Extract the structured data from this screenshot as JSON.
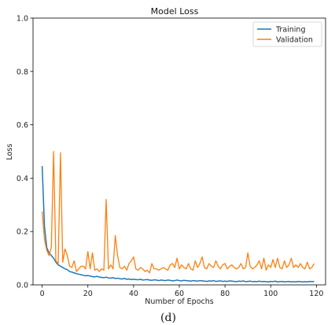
{
  "chart_data": {
    "type": "line",
    "title": "Model Loss",
    "xlabel": "Number of Epochs",
    "ylabel": "Loss",
    "xlim": [
      -4,
      124
    ],
    "ylim": [
      0,
      1.0
    ],
    "xticks": [
      0,
      20,
      40,
      60,
      80,
      100,
      120
    ],
    "yticks": [
      0.0,
      0.2,
      0.4,
      0.6,
      0.8,
      1.0
    ],
    "legend_position": "top-right",
    "grid": false,
    "series": [
      {
        "name": "Training",
        "color": "#1f77b4",
        "x": [
          0,
          1,
          2,
          3,
          4,
          5,
          6,
          7,
          8,
          9,
          10,
          11,
          12,
          13,
          14,
          15,
          16,
          17,
          18,
          19,
          20,
          21,
          22,
          23,
          24,
          25,
          26,
          27,
          28,
          29,
          30,
          31,
          32,
          33,
          34,
          35,
          36,
          37,
          38,
          39,
          40,
          41,
          42,
          43,
          44,
          45,
          46,
          47,
          48,
          49,
          50,
          51,
          52,
          53,
          54,
          55,
          56,
          57,
          58,
          59,
          60,
          61,
          62,
          63,
          64,
          65,
          66,
          67,
          68,
          69,
          70,
          71,
          72,
          73,
          74,
          75,
          76,
          77,
          78,
          79,
          80,
          81,
          82,
          83,
          84,
          85,
          86,
          87,
          88,
          89,
          90,
          91,
          92,
          93,
          94,
          95,
          96,
          97,
          98,
          99,
          100,
          101,
          102,
          103,
          104,
          105,
          106,
          107,
          108,
          109,
          110,
          111,
          112,
          113,
          114,
          115,
          116,
          117,
          118,
          119
        ],
        "y": [
          0.445,
          0.22,
          0.14,
          0.12,
          0.11,
          0.1,
          0.085,
          0.075,
          0.07,
          0.065,
          0.06,
          0.057,
          0.05,
          0.048,
          0.045,
          0.042,
          0.04,
          0.038,
          0.036,
          0.034,
          0.035,
          0.033,
          0.031,
          0.03,
          0.032,
          0.029,
          0.028,
          0.027,
          0.029,
          0.026,
          0.025,
          0.027,
          0.024,
          0.025,
          0.023,
          0.022,
          0.024,
          0.021,
          0.022,
          0.02,
          0.021,
          0.02,
          0.019,
          0.021,
          0.018,
          0.019,
          0.02,
          0.018,
          0.017,
          0.019,
          0.018,
          0.016,
          0.018,
          0.017,
          0.016,
          0.018,
          0.017,
          0.015,
          0.016,
          0.018,
          0.016,
          0.015,
          0.017,
          0.016,
          0.015,
          0.014,
          0.016,
          0.015,
          0.014,
          0.016,
          0.015,
          0.014,
          0.013,
          0.015,
          0.014,
          0.016,
          0.013,
          0.014,
          0.015,
          0.013,
          0.014,
          0.013,
          0.015,
          0.014,
          0.013,
          0.012,
          0.014,
          0.013,
          0.015,
          0.012,
          0.013,
          0.014,
          0.012,
          0.013,
          0.012,
          0.014,
          0.012,
          0.013,
          0.012,
          0.011,
          0.013,
          0.012,
          0.014,
          0.011,
          0.012,
          0.013,
          0.011,
          0.012,
          0.013,
          0.011,
          0.012,
          0.011,
          0.013,
          0.012,
          0.011,
          0.012,
          0.011,
          0.013,
          0.012,
          0.013
        ]
      },
      {
        "name": "Validation",
        "color": "#ff7f0e",
        "x": [
          0,
          1,
          2,
          3,
          4,
          5,
          6,
          7,
          8,
          9,
          10,
          11,
          12,
          13,
          14,
          15,
          16,
          17,
          18,
          19,
          20,
          21,
          22,
          23,
          24,
          25,
          26,
          27,
          28,
          29,
          30,
          31,
          32,
          33,
          34,
          35,
          36,
          37,
          38,
          39,
          40,
          41,
          42,
          43,
          44,
          45,
          46,
          47,
          48,
          49,
          50,
          51,
          52,
          53,
          54,
          55,
          56,
          57,
          58,
          59,
          60,
          61,
          62,
          63,
          64,
          65,
          66,
          67,
          68,
          69,
          70,
          71,
          72,
          73,
          74,
          75,
          76,
          77,
          78,
          79,
          80,
          81,
          82,
          83,
          84,
          85,
          86,
          87,
          88,
          89,
          90,
          91,
          92,
          93,
          94,
          95,
          96,
          97,
          98,
          99,
          100,
          101,
          102,
          103,
          104,
          105,
          106,
          107,
          108,
          109,
          110,
          111,
          112,
          113,
          114,
          115,
          116,
          117,
          118,
          119
        ],
        "y": [
          0.275,
          0.17,
          0.13,
          0.11,
          0.14,
          0.5,
          0.09,
          0.08,
          0.495,
          0.085,
          0.135,
          0.11,
          0.07,
          0.065,
          0.09,
          0.05,
          0.06,
          0.07,
          0.07,
          0.06,
          0.125,
          0.06,
          0.12,
          0.055,
          0.06,
          0.05,
          0.06,
          0.055,
          0.32,
          0.06,
          0.075,
          0.06,
          0.185,
          0.11,
          0.065,
          0.06,
          0.07,
          0.055,
          0.08,
          0.09,
          0.105,
          0.06,
          0.055,
          0.065,
          0.06,
          0.05,
          0.055,
          0.045,
          0.08,
          0.06,
          0.06,
          0.055,
          0.06,
          0.065,
          0.06,
          0.055,
          0.075,
          0.08,
          0.065,
          0.1,
          0.06,
          0.075,
          0.065,
          0.06,
          0.08,
          0.06,
          0.055,
          0.09,
          0.065,
          0.08,
          0.105,
          0.065,
          0.06,
          0.08,
          0.07,
          0.065,
          0.09,
          0.07,
          0.06,
          0.075,
          0.08,
          0.06,
          0.07,
          0.075,
          0.065,
          0.06,
          0.065,
          0.08,
          0.06,
          0.065,
          0.12,
          0.07,
          0.06,
          0.065,
          0.075,
          0.09,
          0.06,
          0.1,
          0.055,
          0.075,
          0.065,
          0.095,
          0.065,
          0.1,
          0.065,
          0.06,
          0.09,
          0.065,
          0.075,
          0.1,
          0.065,
          0.075,
          0.065,
          0.08,
          0.065,
          0.06,
          0.085,
          0.06,
          0.065,
          0.08
        ]
      }
    ]
  },
  "caption": "(d)"
}
